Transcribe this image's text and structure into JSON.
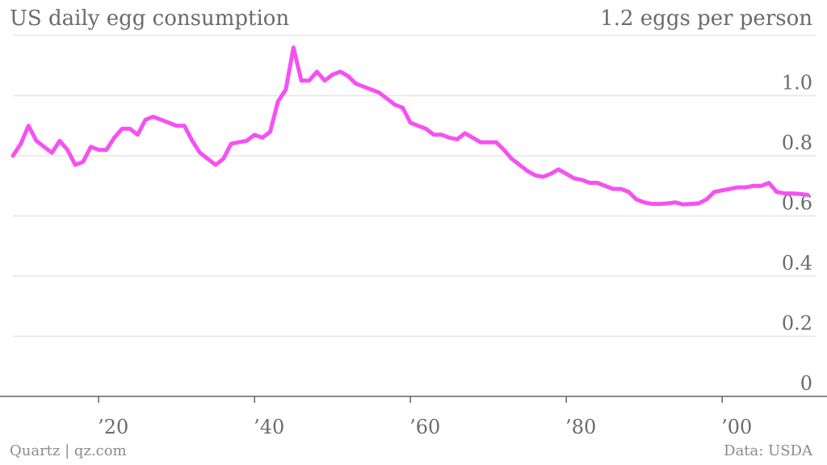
{
  "header": {
    "title": "US daily egg consumption",
    "top_label": "1.2 eggs per person"
  },
  "footer": {
    "credit": "Quartz | qz.com",
    "source": "Data: USDA"
  },
  "colors": {
    "line": "#f551f2",
    "grid": "#e6e6e6",
    "axis": "#666666",
    "text": "#6b6b6b"
  },
  "chart_data": {
    "type": "line",
    "title": "US daily egg consumption",
    "xlabel": "",
    "ylabel": "",
    "xlim": [
      1909,
      2012
    ],
    "ylim": [
      0,
      1.2
    ],
    "grid": true,
    "y_ticks": [
      {
        "value": 0,
        "label": "0"
      },
      {
        "value": 0.2,
        "label": "0.2"
      },
      {
        "value": 0.4,
        "label": "0.4"
      },
      {
        "value": 0.6,
        "label": "0.6"
      },
      {
        "value": 0.8,
        "label": "0.8"
      },
      {
        "value": 1.0,
        "label": "1.0"
      }
    ],
    "x_ticks": [
      {
        "value": 1920,
        "label": "’20"
      },
      {
        "value": 1940,
        "label": "’40"
      },
      {
        "value": 1960,
        "label": "’60"
      },
      {
        "value": 1980,
        "label": "’80"
      },
      {
        "value": 2000,
        "label": "’00"
      }
    ],
    "series": [
      {
        "x": [
          1909,
          1910,
          1911,
          1912,
          1913,
          1914,
          1915,
          1916,
          1917,
          1918,
          1919,
          1920,
          1921,
          1922,
          1923,
          1924,
          1925,
          1926,
          1927,
          1928,
          1929,
          1930,
          1931,
          1932,
          1933,
          1934,
          1935,
          1936,
          1937,
          1938,
          1939,
          1940,
          1941,
          1942,
          1943,
          1944,
          1945,
          1946,
          1947,
          1948,
          1949,
          1950,
          1951,
          1952,
          1953,
          1954,
          1955,
          1956,
          1957,
          1958,
          1959,
          1960,
          1961,
          1962,
          1963,
          1964,
          1965,
          1966,
          1967,
          1968,
          1969,
          1970,
          1971,
          1972,
          1973,
          1974,
          1975,
          1976,
          1977,
          1978,
          1979,
          1980,
          1981,
          1982,
          1983,
          1984,
          1985,
          1986,
          1987,
          1988,
          1989,
          1990,
          1991,
          1992,
          1993,
          1994,
          1995,
          1996,
          1997,
          1998,
          1999,
          2000,
          2001,
          2002,
          2003,
          2004,
          2005,
          2006,
          2007,
          2008,
          2009,
          2010,
          2011
        ],
        "values": [
          0.8,
          0.84,
          0.9,
          0.85,
          0.83,
          0.81,
          0.85,
          0.82,
          0.77,
          0.78,
          0.83,
          0.82,
          0.82,
          0.86,
          0.89,
          0.89,
          0.87,
          0.92,
          0.93,
          0.92,
          0.91,
          0.9,
          0.9,
          0.85,
          0.81,
          0.79,
          0.77,
          0.79,
          0.84,
          0.845,
          0.85,
          0.87,
          0.86,
          0.88,
          0.98,
          1.02,
          1.16,
          1.05,
          1.05,
          1.08,
          1.05,
          1.07,
          1.08,
          1.065,
          1.04,
          1.03,
          1.02,
          1.01,
          0.99,
          0.97,
          0.96,
          0.91,
          0.9,
          0.89,
          0.87,
          0.87,
          0.86,
          0.855,
          0.875,
          0.86,
          0.845,
          0.845,
          0.845,
          0.82,
          0.79,
          0.77,
          0.75,
          0.735,
          0.73,
          0.74,
          0.755,
          0.74,
          0.725,
          0.72,
          0.71,
          0.71,
          0.7,
          0.69,
          0.69,
          0.68,
          0.655,
          0.645,
          0.64,
          0.64,
          0.642,
          0.645,
          0.638,
          0.64,
          0.642,
          0.655,
          0.68,
          0.685,
          0.69,
          0.695,
          0.695,
          0.7,
          0.7,
          0.71,
          0.68,
          0.675,
          0.675,
          0.673,
          0.67
        ]
      }
    ]
  }
}
